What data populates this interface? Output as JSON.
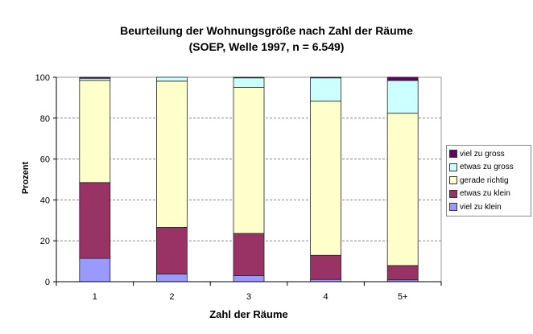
{
  "chart_data": {
    "type": "bar",
    "stacked": true,
    "title": "Beurteilung der Wohnungsgröße nach Zahl der Räume",
    "subtitle": "(SOEP, Welle 1997, n = 6.549)",
    "xlabel": "Zahl der Räume",
    "ylabel": "Prozent",
    "ylim": [
      0,
      100
    ],
    "yticks": [
      0,
      20,
      40,
      60,
      80,
      100
    ],
    "categories": [
      "1",
      "2",
      "3",
      "4",
      "5+"
    ],
    "grid": true,
    "legend_position": "right",
    "series": [
      {
        "name": "viel zu klein",
        "color": "#9999ff",
        "values": [
          11.4,
          3.8,
          3.0,
          1.1,
          0.9
        ]
      },
      {
        "name": "etwas zu klein",
        "color": "#993366",
        "values": [
          37.1,
          22.8,
          20.6,
          11.8,
          7.0
        ]
      },
      {
        "name": "gerade richtig",
        "color": "#ffffcc",
        "values": [
          50.0,
          71.5,
          71.5,
          75.4,
          74.5
        ]
      },
      {
        "name": "etwas zu gross",
        "color": "#ccffff",
        "values": [
          1.0,
          1.9,
          4.6,
          11.4,
          16.0
        ]
      },
      {
        "name": "viel zu gross",
        "color": "#660066",
        "values": [
          0.5,
          0.0,
          0.3,
          0.3,
          1.6
        ]
      }
    ]
  }
}
